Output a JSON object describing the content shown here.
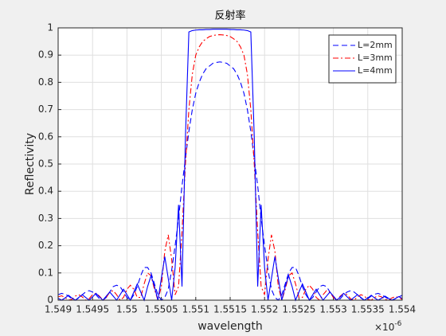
{
  "chart_data": {
    "type": "line",
    "title": "反射率",
    "xlabel": "wavelength",
    "ylabel": "Reflectivity",
    "x_multiplier": "×10",
    "x_multiplier_exponent": "-6",
    "x": [
      1.549,
      1.54905,
      1.5491,
      1.54915,
      1.5492,
      1.54925,
      1.5493,
      1.54935,
      1.5494,
      1.54945,
      1.5495,
      1.54955,
      1.5496,
      1.54965,
      1.5497,
      1.54975,
      1.5498,
      1.54985,
      1.5499,
      1.54995,
      1.55,
      1.55005,
      1.5501,
      1.55015,
      1.5502,
      1.55025,
      1.5503,
      1.55035,
      1.5504,
      1.55045,
      1.5505,
      1.55055,
      1.5506,
      1.55065,
      1.5507,
      1.55075,
      1.5508,
      1.55085,
      1.5509,
      1.55095,
      1.551,
      1.55105,
      1.5511,
      1.55115,
      1.5512,
      1.55125,
      1.5513,
      1.55135,
      1.5514,
      1.55145,
      1.5515,
      1.55155,
      1.5516,
      1.55165,
      1.5517,
      1.55175,
      1.5518,
      1.55185,
      1.5519,
      1.55195,
      1.552,
      1.55205,
      1.5521,
      1.55215,
      1.5522,
      1.55225,
      1.5523,
      1.55235,
      1.5524,
      1.55245,
      1.5525,
      1.55255,
      1.5526,
      1.55265,
      1.5527,
      1.55275,
      1.5528,
      1.55285,
      1.5529,
      1.55295,
      1.553,
      1.55305,
      1.5531,
      1.55315,
      1.5532,
      1.55325,
      1.5533,
      1.55335,
      1.5534,
      1.55345,
      1.5535,
      1.55355,
      1.5536,
      1.55365,
      1.5537,
      1.55375,
      1.5538,
      1.55385,
      1.5539,
      1.55395,
      1.554
    ],
    "series": [
      {
        "name": "L=2mm",
        "color": "#0000ff",
        "linestyle": "dashed",
        "values": [
          0.02,
          0.025,
          0.022,
          0.015,
          0.005,
          0,
          0.008,
          0.02,
          0.03,
          0.035,
          0.03,
          0.02,
          0.005,
          0,
          0.01,
          0.03,
          0.05,
          0.055,
          0.05,
          0.03,
          0.01,
          0,
          0.02,
          0.05,
          0.09,
          0.12,
          0.12,
          0.1,
          0.06,
          0.02,
          0,
          0.01,
          0.04,
          0.11,
          0.2,
          0.3,
          0.42,
          0.52,
          0.62,
          0.7,
          0.76,
          0.8,
          0.83,
          0.85,
          0.86,
          0.87,
          0.873,
          0.875,
          0.873,
          0.87,
          0.86,
          0.85,
          0.83,
          0.8,
          0.76,
          0.7,
          0.62,
          0.52,
          0.42,
          0.3,
          0.2,
          0.11,
          0.04,
          0.01,
          0,
          0.02,
          0.06,
          0.1,
          0.12,
          0.12,
          0.09,
          0.05,
          0.02,
          0,
          0.01,
          0.03,
          0.05,
          0.055,
          0.05,
          0.03,
          0.01,
          0,
          0.005,
          0.02,
          0.03,
          0.035,
          0.03,
          0.02,
          0.008,
          0,
          0.005,
          0.015,
          0.022,
          0.025,
          0.02,
          0.012,
          0.004,
          0,
          0.005,
          0.012,
          0.018
        ]
      },
      {
        "name": "L=3mm",
        "color": "#ff0000",
        "linestyle": "dashdot",
        "values": [
          0.012,
          0.016,
          0.01,
          0,
          0.003,
          0.015,
          0.02,
          0.012,
          0,
          0.005,
          0.02,
          0.025,
          0.015,
          0,
          0.01,
          0.03,
          0.035,
          0.02,
          0,
          0.01,
          0.04,
          0.055,
          0.04,
          0.01,
          0.01,
          0.06,
          0.1,
          0.09,
          0.04,
          0,
          0.05,
          0.18,
          0.24,
          0.15,
          0.02,
          0.05,
          0.25,
          0.5,
          0.7,
          0.83,
          0.9,
          0.93,
          0.95,
          0.96,
          0.968,
          0.972,
          0.974,
          0.975,
          0.974,
          0.972,
          0.968,
          0.96,
          0.95,
          0.93,
          0.9,
          0.83,
          0.7,
          0.5,
          0.25,
          0.05,
          0.02,
          0.15,
          0.24,
          0.18,
          0.05,
          0,
          0.04,
          0.09,
          0.1,
          0.06,
          0.01,
          0.01,
          0.04,
          0.055,
          0.04,
          0.01,
          0,
          0.02,
          0.035,
          0.03,
          0.01,
          0,
          0.015,
          0.025,
          0.02,
          0.005,
          0,
          0.012,
          0.02,
          0.015,
          0.003,
          0,
          0.01,
          0.016,
          0.012,
          0.003,
          0,
          0.008,
          0.013,
          0.01,
          0.003
        ]
      },
      {
        "name": "L=4mm",
        "color": "#0000ff",
        "linestyle": "solid",
        "values": [
          0.007,
          0,
          0.008,
          0.018,
          0.008,
          0,
          0.01,
          0.02,
          0.01,
          0,
          0.012,
          0.025,
          0.012,
          0,
          0.015,
          0.03,
          0.015,
          0,
          0.02,
          0.04,
          0.02,
          0,
          0.03,
          0.06,
          0.03,
          0,
          0.05,
          0.09,
          0.05,
          0,
          0.08,
          0.16,
          0.08,
          0,
          0.12,
          0.35,
          0.05,
          0.6,
          0.985,
          0.99,
          0.992,
          0.993,
          0.993,
          0.994,
          0.994,
          0.995,
          0.995,
          0.995,
          0.995,
          0.995,
          0.994,
          0.994,
          0.993,
          0.993,
          0.992,
          0.99,
          0.985,
          0.6,
          0.05,
          0.35,
          0.12,
          0,
          0.08,
          0.16,
          0.08,
          0,
          0.05,
          0.09,
          0.05,
          0,
          0.03,
          0.06,
          0.03,
          0,
          0.02,
          0.04,
          0.02,
          0,
          0.015,
          0.03,
          0.015,
          0,
          0.012,
          0.025,
          0.012,
          0,
          0.01,
          0.02,
          0.01,
          0,
          0.008,
          0.018,
          0.008,
          0,
          0.007,
          0.015,
          0.007,
          0,
          0.006,
          0.013,
          0.006
        ]
      }
    ],
    "xlim": [
      1.549,
      1.554
    ],
    "xticks": [
      1.549,
      1.5495,
      1.55,
      1.5505,
      1.551,
      1.5515,
      1.552,
      1.5525,
      1.553,
      1.5535,
      1.554
    ],
    "ylim": [
      0,
      1
    ],
    "yticks": [
      0,
      0.1,
      0.2,
      0.3,
      0.4,
      0.5,
      0.6,
      0.7,
      0.8,
      0.9,
      1
    ],
    "grid": true,
    "legend_position": "northeast"
  }
}
